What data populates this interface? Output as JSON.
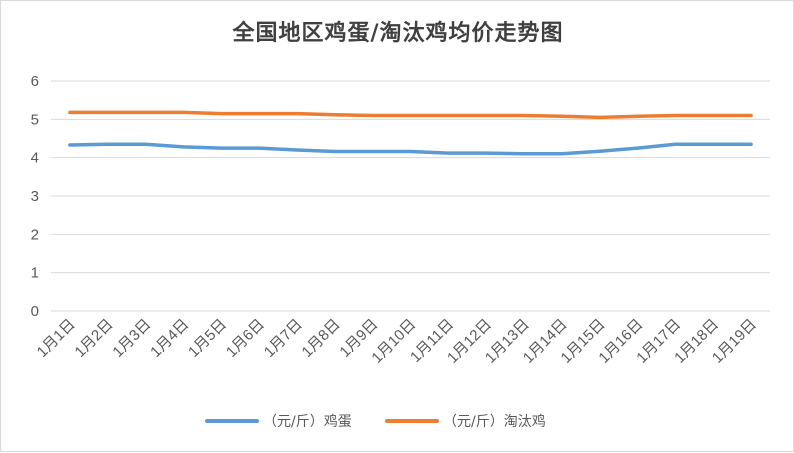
{
  "chart_data": {
    "type": "line",
    "title": "全国地区鸡蛋/淘汰鸡均价走势图",
    "categories": [
      "1月1日",
      "1月2日",
      "1月3日",
      "1月4日",
      "1月5日",
      "1月6日",
      "1月7日",
      "1月8日",
      "1月9日",
      "1月10日",
      "1月11日",
      "1月12日",
      "1月13日",
      "1月14日",
      "1月15日",
      "1月16日",
      "1月17日",
      "1月18日",
      "1月19日"
    ],
    "series": [
      {
        "name": "（元/斤）鸡蛋",
        "color": "#5b9bd5",
        "values": [
          4.33,
          4.35,
          4.35,
          4.28,
          4.25,
          4.25,
          4.2,
          4.16,
          4.16,
          4.16,
          4.12,
          4.12,
          4.1,
          4.1,
          4.17,
          4.25,
          4.35,
          4.35,
          4.35
        ]
      },
      {
        "name": "（元/斤）淘汰鸡",
        "color": "#ed7d31",
        "values": [
          5.18,
          5.18,
          5.18,
          5.18,
          5.15,
          5.15,
          5.15,
          5.12,
          5.1,
          5.1,
          5.1,
          5.1,
          5.1,
          5.08,
          5.05,
          5.08,
          5.1,
          5.1,
          5.1
        ]
      }
    ],
    "y_ticks": [
      "0",
      "1",
      "2",
      "3",
      "4",
      "5",
      "6"
    ],
    "ylim": [
      0,
      6
    ],
    "grid": true,
    "legend_position": "bottom"
  }
}
